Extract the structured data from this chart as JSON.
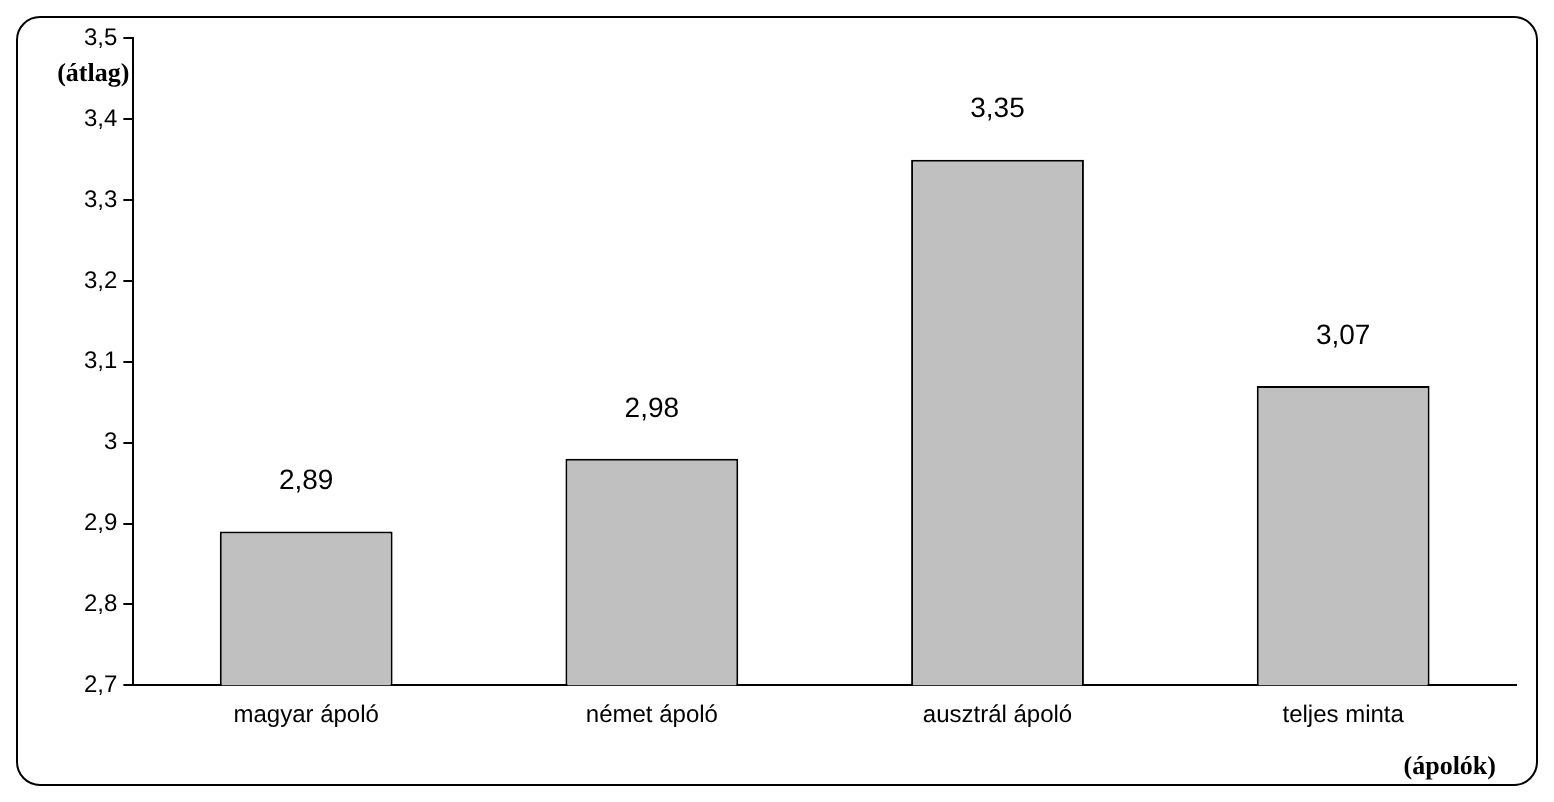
{
  "chart_data": {
    "type": "bar",
    "ylabel": "(átlag)",
    "xlabel": "(ápolók)",
    "categories": [
      "magyar ápoló",
      "német ápoló",
      "ausztrál ápoló",
      "teljes minta"
    ],
    "values": [
      2.89,
      2.98,
      3.35,
      3.07
    ],
    "value_labels": [
      "2,89",
      "2,98",
      "3,35",
      "3,07"
    ],
    "color": "#c0c0c0",
    "ylim": [
      2.7,
      3.5
    ],
    "yticks": [
      {
        "value": 2.7,
        "label": "2,7"
      },
      {
        "value": 2.8,
        "label": "2,8"
      },
      {
        "value": 2.9,
        "label": "2,9"
      },
      3,
      {
        "value": 3.1,
        "label": "3,1"
      },
      {
        "value": 3.2,
        "label": "3,2"
      },
      {
        "value": 3.3,
        "label": "3,3"
      },
      {
        "value": 3.4,
        "label": "3,4"
      },
      {
        "value": 3.5,
        "label": "3,5"
      }
    ],
    "grid": false,
    "legend": false
  }
}
